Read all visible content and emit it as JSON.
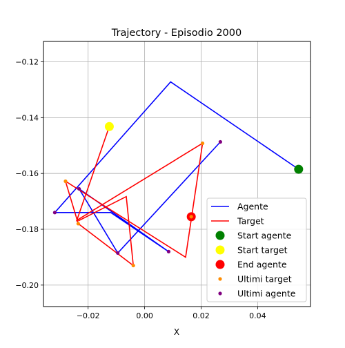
{
  "chart_data": {
    "type": "line",
    "title": "Trajectory - Episodio 2000",
    "xlabel": "X",
    "ylabel": "",
    "xlim": [
      -0.0358,
      0.0587
    ],
    "ylim": [
      -0.2077,
      -0.1127
    ],
    "xticks": [
      -0.02,
      0.0,
      0.02,
      0.04
    ],
    "xtick_labels": [
      "−0.02",
      "0.00",
      "0.02",
      "0.04"
    ],
    "yticks": [
      -0.2,
      -0.18,
      -0.16,
      -0.14,
      -0.12
    ],
    "ytick_labels": [
      "−0.20",
      "−0.18",
      "−0.16",
      "−0.14",
      "−0.12"
    ],
    "grid": true,
    "legend_position": "lower-right",
    "series": [
      {
        "name": "Agente",
        "kind": "line",
        "color": "#0000ff",
        "points": [
          [
            0.0545,
            -0.1585
          ],
          [
            0.0092,
            -0.1272
          ],
          [
            -0.0318,
            -0.174
          ],
          [
            -0.012,
            -0.174
          ],
          [
            0.0085,
            -0.188
          ],
          [
            -0.0232,
            -0.1655
          ],
          [
            -0.0095,
            -0.1885
          ],
          [
            0.0268,
            -0.1487
          ]
        ]
      },
      {
        "name": "Target",
        "kind": "line",
        "color": "#ff0000",
        "points": [
          [
            -0.0125,
            -0.1432
          ],
          [
            -0.024,
            -0.1768
          ],
          [
            0.0205,
            -0.1492
          ],
          [
            0.0145,
            -0.19
          ],
          [
            -0.028,
            -0.1628
          ],
          [
            -0.0235,
            -0.178
          ],
          [
            -0.004,
            -0.193
          ],
          [
            -0.0065,
            -0.1683
          ],
          [
            -0.0235,
            -0.177
          ]
        ]
      },
      {
        "name": "Start agente",
        "kind": "scatter",
        "color": "#008000",
        "size": "large",
        "points": [
          [
            0.0545,
            -0.1585
          ]
        ]
      },
      {
        "name": "Start target",
        "kind": "scatter",
        "color": "#ffff00",
        "size": "large",
        "points": [
          [
            -0.0125,
            -0.1432
          ]
        ]
      },
      {
        "name": "End agente",
        "kind": "scatter",
        "color": "#ff0000",
        "size": "large",
        "points": [
          [
            0.0165,
            -0.1755
          ]
        ]
      },
      {
        "name": "Ultimi target",
        "kind": "scatter",
        "color": "#ff8c00",
        "size": "small",
        "points": [
          [
            0.0205,
            -0.1492
          ],
          [
            -0.028,
            -0.1628
          ],
          [
            -0.0235,
            -0.178
          ],
          [
            -0.004,
            -0.193
          ],
          [
            0.0165,
            -0.1755
          ]
        ]
      },
      {
        "name": "Ultimi agente",
        "kind": "scatter",
        "color": "#800080",
        "size": "small",
        "points": [
          [
            0.0268,
            -0.1487
          ],
          [
            -0.0318,
            -0.174
          ],
          [
            -0.0232,
            -0.1655
          ],
          [
            -0.0095,
            -0.1885
          ],
          [
            0.0085,
            -0.188
          ]
        ]
      }
    ]
  }
}
